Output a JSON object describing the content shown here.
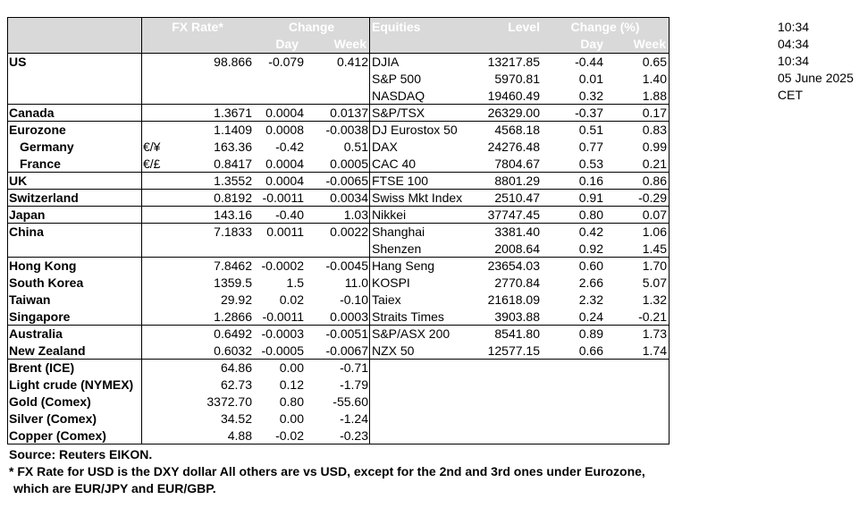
{
  "table": {
    "header": {
      "fx_rate": "FX Rate*",
      "change": "Change",
      "day": "Day",
      "week": "Week",
      "equities": "Equities",
      "level": "Level",
      "change_pct": "Change (%)",
      "eq_day": "Day",
      "eq_week": "Week"
    },
    "rows": [
      {
        "label": "US",
        "fx": "98.866",
        "day": "-0.079",
        "week": "0.412",
        "equity": "DJIA",
        "level": "13217.85",
        "eq_day": "-0.44",
        "eq_week": "0.65"
      },
      {
        "equity": "S&P 500",
        "level": "5970.81",
        "eq_day": "0.01",
        "eq_week": "1.40"
      },
      {
        "equity": "NASDAQ",
        "level": "19460.49",
        "eq_day": "0.32",
        "eq_week": "1.88"
      },
      {
        "label": "Canada",
        "fx": "1.3671",
        "day": "0.0004",
        "week": "0.0137",
        "equity": "S&P/TSX",
        "level": "26329.00",
        "eq_day": "-0.37",
        "eq_week": "0.17"
      },
      {
        "label": "Eurozone",
        "fx": "1.1409",
        "day": "0.0008",
        "week": "-0.0038",
        "equity": "DJ Eurostox 50",
        "level": "4568.18",
        "eq_day": "0.51",
        "eq_week": "0.83"
      },
      {
        "label": "Germany",
        "unit": "€/¥",
        "fx": "163.36",
        "day": "-0.42",
        "week": "0.51",
        "equity": "DAX",
        "level": "24276.48",
        "eq_day": "0.77",
        "eq_week": "0.99"
      },
      {
        "label": "France",
        "unit": "€/£",
        "fx": "0.8417",
        "day": "0.0004",
        "week": "0.0005",
        "equity": "CAC 40",
        "level": "7804.67",
        "eq_day": "0.53",
        "eq_week": "0.21"
      },
      {
        "label": "UK",
        "fx": "1.3552",
        "day": "0.0004",
        "week": "-0.0065",
        "equity": "FTSE 100",
        "level": "8801.29",
        "eq_day": "0.16",
        "eq_week": "0.86"
      },
      {
        "label": "Switzerland",
        "fx": "0.8192",
        "day": "-0.0011",
        "week": "0.0034",
        "equity": "Swiss Mkt Index",
        "level": "2510.47",
        "eq_day": "0.91",
        "eq_week": "-0.29"
      },
      {
        "label": "Japan",
        "fx": "143.16",
        "day": "-0.40",
        "week": "1.03",
        "equity": "Nikkei",
        "level": "37747.45",
        "eq_day": "0.80",
        "eq_week": "0.07"
      },
      {
        "label": "China",
        "fx": "7.1833",
        "day": "0.0011",
        "week": "0.0022",
        "equity": "Shanghai",
        "level": "3381.40",
        "eq_day": "0.42",
        "eq_week": "1.06"
      },
      {
        "equity": "Shenzen",
        "level": "2008.64",
        "eq_day": "0.92",
        "eq_week": "1.45"
      },
      {
        "label": "Hong Kong",
        "fx": "7.8462",
        "day": "-0.0002",
        "week": "-0.0045",
        "equity": "Hang Seng",
        "level": "23654.03",
        "eq_day": "0.60",
        "eq_week": "1.70"
      },
      {
        "label": "South Korea",
        "fx": "1359.5",
        "day": "1.5",
        "week": "11.0",
        "equity": "KOSPI",
        "level": "2770.84",
        "eq_day": "2.66",
        "eq_week": "5.07"
      },
      {
        "label": "Taiwan",
        "fx": "29.92",
        "day": "0.02",
        "week": "-0.10",
        "equity": "Taiex",
        "level": "21618.09",
        "eq_day": "2.32",
        "eq_week": "1.32"
      },
      {
        "label": "Singapore",
        "fx": "1.2866",
        "day": "-0.0011",
        "week": "0.0003",
        "equity": "Straits Times",
        "level": "3903.88",
        "eq_day": "0.24",
        "eq_week": "-0.21"
      },
      {
        "label": "Australia",
        "fx": "0.6492",
        "day": "-0.0003",
        "week": "-0.0051",
        "equity": "S&P/ASX 200",
        "level": "8541.80",
        "eq_day": "0.89",
        "eq_week": "1.73"
      },
      {
        "label": "New Zealand",
        "fx": "0.6032",
        "day": "-0.0005",
        "week": "-0.0067",
        "equity": "NZX 50",
        "level": "12577.15",
        "eq_day": "0.66",
        "eq_week": "1.74"
      },
      {
        "label": "Brent (ICE)",
        "fx": "64.86",
        "day": "0.00",
        "week": "-0.71"
      },
      {
        "label": "Light crude (NYMEX)",
        "fx": "62.73",
        "day": "0.12",
        "week": "-1.79"
      },
      {
        "label": "Gold (Comex)",
        "fx": "3372.70",
        "day": "0.80",
        "week": "-55.60"
      },
      {
        "label": "Silver (Comex)",
        "fx": "34.52",
        "day": "0.00",
        "week": "-1.24"
      },
      {
        "label": "Copper (Comex)",
        "fx": "4.88",
        "day": "-0.02",
        "week": "-0.23"
      }
    ]
  },
  "times": [
    "10:34",
    "04:34",
    "10:34",
    "05 June 2025",
    "CET"
  ],
  "footer": {
    "source": "Source:  Reuters EIKON.",
    "note_1": "* FX Rate for USD is the DXY dollar  All others are vs USD, except for the 2nd and 3rd ones under Eurozone,",
    "note_2": "which are EUR/JPY and EUR/GBP."
  }
}
